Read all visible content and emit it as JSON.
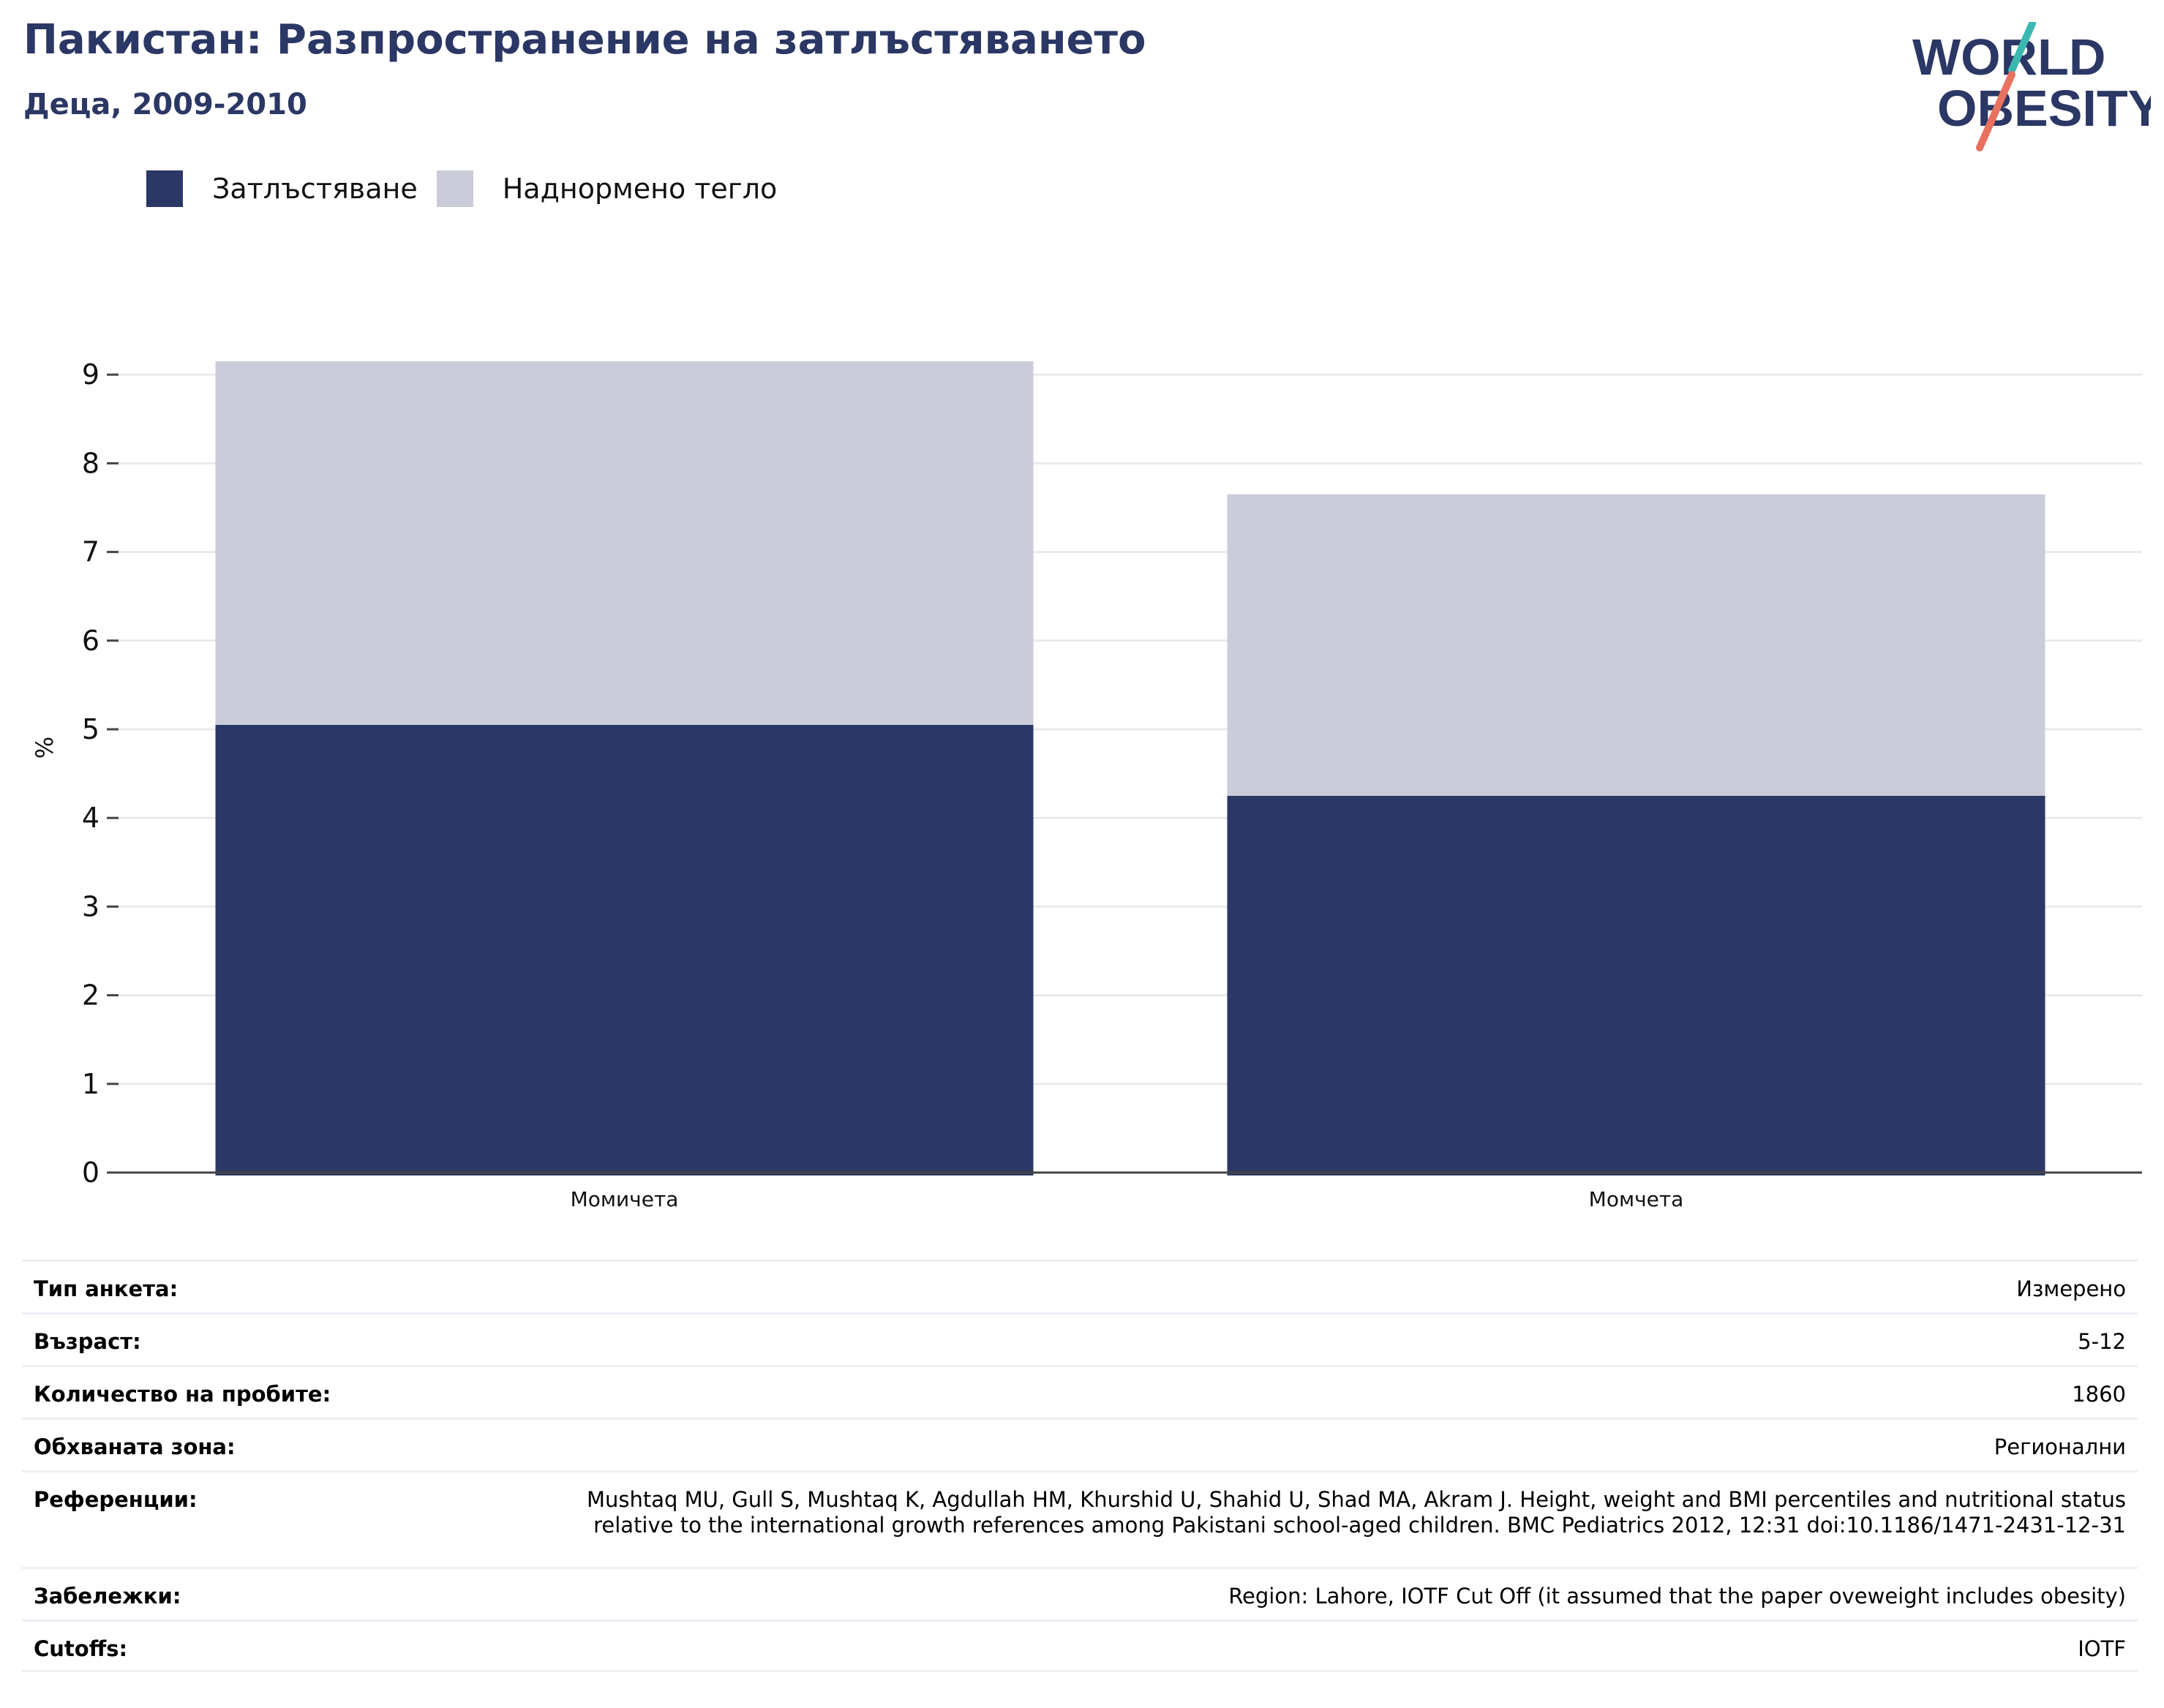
{
  "header": {
    "title": "Пакистан: Разпространение на затлъстяването",
    "subtitle": "Деца, 2009-2010"
  },
  "logo": {
    "line1": "WORLD",
    "line2": "OBESITY"
  },
  "colors": {
    "obesity": "#2b3764",
    "overweight": "#cacdd9",
    "title": "#2b3764",
    "accent_teal": "#3bb8b0",
    "accent_coral": "#e8715f"
  },
  "chart_data": {
    "type": "bar",
    "stacked": true,
    "categories": [
      "Момичета",
      "Момчета"
    ],
    "series": [
      {
        "name": "Затлъстяване",
        "values": [
          5.05,
          4.25
        ]
      },
      {
        "name": "Наднормено тегло",
        "values": [
          4.1,
          3.4
        ]
      }
    ],
    "ylabel": "%",
    "ylim": [
      0,
      9.15
    ],
    "yticks": [
      "0",
      "1",
      "2",
      "3",
      "4",
      "5",
      "6",
      "7",
      "8",
      "9"
    ],
    "grid": true,
    "legend": "top-left"
  },
  "info": [
    {
      "label": "Тип анкета:",
      "value": "Измерено"
    },
    {
      "label": "Възраст:",
      "value": "5-12"
    },
    {
      "label": "Количество на пробите:",
      "value": "1860"
    },
    {
      "label": "Обхваната зона:",
      "value": "Регионални"
    },
    {
      "label": "Референции:",
      "value": "Mushtaq MU, Gull S, Mushtaq K, Agdullah HM, Khurshid U, Shahid U, Shad MA, Akram J. Height, weight and BMI percentiles and nutritional status relative to the international growth references among Pakistani school-aged children. BMC Pediatrics 2012, 12:31 doi:10.1186/1471-2431-12-31"
    },
    {
      "label": "Забележки:",
      "value": "Region: Lahore, IOTF Cut Off (it assumed that the paper oveweight includes obesity)"
    },
    {
      "label": "Cutoffs:",
      "value": "IOTF"
    }
  ]
}
